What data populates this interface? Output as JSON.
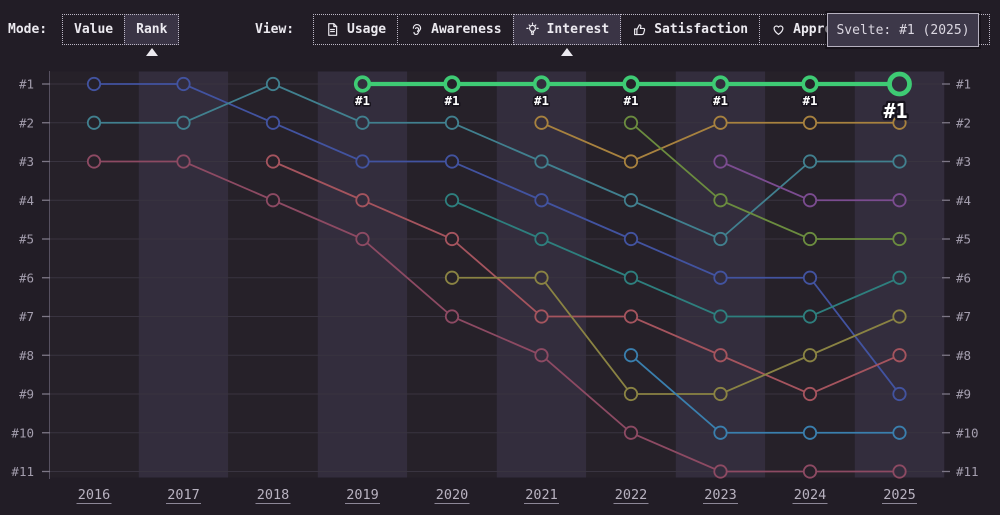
{
  "toolbar": {
    "mode_label": "Mode:",
    "modes": [
      {
        "label": "Value",
        "selected": false
      },
      {
        "label": "Rank",
        "selected": true
      }
    ],
    "view_label": "View:",
    "views": [
      {
        "label": "Usage",
        "icon": "document-icon",
        "selected": false
      },
      {
        "label": "Awareness",
        "icon": "ear-icon",
        "selected": false
      },
      {
        "label": "Interest",
        "icon": "lightbulb-icon",
        "selected": true
      },
      {
        "label": "Satisfaction",
        "icon": "thumbs-up-icon",
        "selected": false
      },
      {
        "label": "Appreciation",
        "icon": "heart-icon",
        "selected": false
      }
    ],
    "tooltip": {
      "text": "Svelte: #1 (2025)"
    }
  },
  "chart_data": {
    "type": "line",
    "variant": "bump-rank-chart",
    "x_labels": [
      "2016",
      "2017",
      "2018",
      "2019",
      "2020",
      "2021",
      "2022",
      "2023",
      "2024",
      "2025"
    ],
    "y_axis_left_labels": [
      "#1",
      "#2",
      "#3",
      "#4",
      "#5",
      "#6",
      "#7",
      "#8",
      "#9",
      "#10",
      "#11"
    ],
    "y_axis_right_labels": [
      "#1",
      "#2",
      "#3",
      "#4",
      "#5",
      "#6",
      "#7",
      "#8",
      "#9",
      "#10",
      "#11"
    ],
    "y_range": [
      1,
      11
    ],
    "grid": "horizontal",
    "legend": "none",
    "background_bands": "alternating-year-columns",
    "series": [
      {
        "id": "indigo",
        "color": "#4253a0",
        "ranks": [
          1,
          1,
          2,
          3,
          3,
          4,
          5,
          6,
          6,
          9
        ]
      },
      {
        "id": "teal",
        "color": "#41808f",
        "ranks": [
          2,
          2,
          1,
          2,
          2,
          3,
          4,
          5,
          3,
          3
        ]
      },
      {
        "id": "maroon",
        "color": "#8d4a63",
        "ranks": [
          3,
          3,
          4,
          5,
          7,
          8,
          10,
          11,
          11,
          11
        ]
      },
      {
        "id": "rose",
        "color": "#a5545e",
        "ranks": [
          null,
          null,
          3,
          4,
          5,
          7,
          7,
          8,
          9,
          8
        ]
      },
      {
        "id": "dark-teal",
        "color": "#2e7f7e",
        "ranks": [
          null,
          null,
          null,
          null,
          4,
          5,
          6,
          7,
          7,
          6
        ]
      },
      {
        "id": "olive",
        "color": "#8a8343",
        "ranks": [
          null,
          null,
          null,
          null,
          6,
          6,
          9,
          9,
          8,
          7
        ]
      },
      {
        "id": "gold",
        "color": "#a8823f",
        "ranks": [
          null,
          null,
          null,
          null,
          null,
          2,
          3,
          2,
          2,
          2
        ]
      },
      {
        "id": "leaf-green",
        "color": "#6b8c3f",
        "ranks": [
          null,
          null,
          null,
          null,
          null,
          null,
          2,
          4,
          5,
          5
        ]
      },
      {
        "id": "steel-blue",
        "color": "#3a7fae",
        "ranks": [
          null,
          null,
          null,
          null,
          null,
          null,
          8,
          10,
          10,
          10
        ]
      },
      {
        "id": "purple",
        "color": "#7b4c90",
        "ranks": [
          null,
          null,
          null,
          null,
          null,
          null,
          null,
          3,
          4,
          4
        ]
      },
      {
        "id": "svelte",
        "name": "Svelte",
        "color": "#3ecb74",
        "highlight": true,
        "ranks": [
          null,
          null,
          null,
          1,
          1,
          1,
          1,
          1,
          1,
          1
        ],
        "point_labels": [
          null,
          null,
          null,
          "#1",
          "#1",
          "#1",
          "#1",
          "#1",
          "#1",
          "#1"
        ]
      }
    ]
  },
  "colors": {
    "page_bg": "#221d26",
    "band_light": "#332d3d",
    "band_dark": "#262129",
    "grid": "#393440",
    "axis_line": "#565060",
    "tick": "#7d7786",
    "axis_text": "#a49eae",
    "year_text": "#b8b2c0",
    "label_outline": "#17131d",
    "highlight": "#3ecb74",
    "selected_bg": "#3a3445",
    "tooltip_bg": "#3d3849",
    "tooltip_border": "#b6b1bf"
  }
}
